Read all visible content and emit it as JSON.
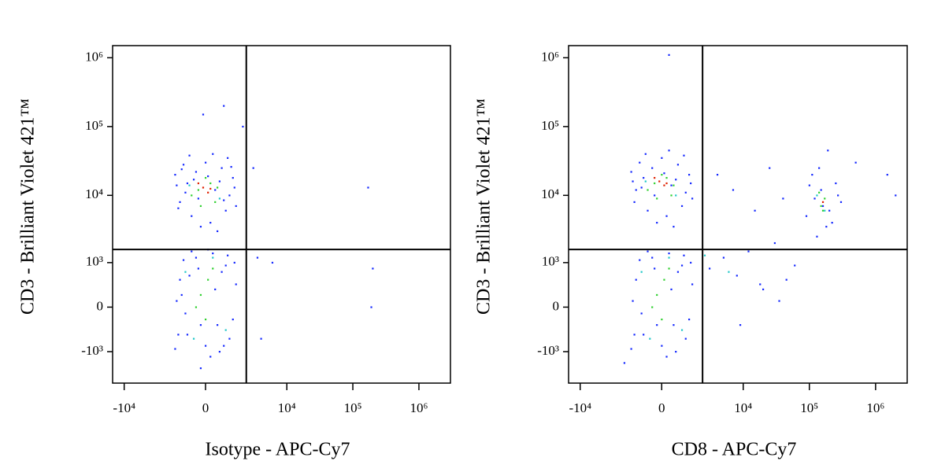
{
  "chart_data": [
    {
      "type": "scatter",
      "xlabel": "Isotype - APC-Cy7",
      "ylabel": "CD3 - Brilliant Violet 421™",
      "xscale": "biexponential",
      "yscale": "biexponential",
      "xlim": [
        -15000,
        3000000
      ],
      "ylim": [
        -3000,
        1500000
      ],
      "xticks": [
        {
          "value": -10000,
          "label": "-10⁴"
        },
        0,
        {
          "value": 10000,
          "label": "10⁴"
        },
        {
          "value": 100000,
          "label": "10⁵"
        },
        {
          "value": 1000000,
          "label": "10⁶"
        }
      ],
      "yticks": [
        {
          "value": -1000,
          "label": "-10³"
        },
        0,
        {
          "value": 1000,
          "label": "10³"
        },
        {
          "value": 10000,
          "label": "10⁴"
        },
        {
          "value": 100000,
          "label": "10⁵"
        },
        {
          "value": 1000000,
          "label": "10⁶"
        }
      ],
      "quadrant_x": 2300,
      "quadrant_y": 1600,
      "series": [
        {
          "color": "#1428ff",
          "x": [
            -1200,
            -800,
            -400,
            0,
            400,
            900,
            1300,
            -1400,
            -600,
            200,
            700,
            1100,
            -1000,
            300,
            -200,
            1500,
            -1500,
            600,
            -300,
            1000,
            -900,
            1400,
            -1300,
            500,
            -700,
            100,
            800,
            -1100,
            1200,
            -500,
            -100,
            800,
            3000,
            170000,
            2000,
            -1200,
            -800,
            -400,
            0,
            400,
            900,
            1300,
            -1400,
            -600,
            200,
            700,
            1100,
            -1000,
            300,
            -200,
            1500,
            -1500,
            600,
            -300,
            1000,
            -900,
            1400,
            -1300,
            500,
            -700,
            100,
            800,
            -1100,
            3500,
            4000,
            6000,
            200000,
            190000,
            -200
          ],
          "y": [
            8000,
            15000,
            22000,
            30000,
            12000,
            6000,
            18000,
            14000,
            5000,
            4000,
            25000,
            10000,
            28000,
            40000,
            3500,
            7000,
            20000,
            16000,
            9000,
            35000,
            11000,
            13000,
            6500,
            3000,
            38000,
            19000,
            8500,
            24000,
            26000,
            17000,
            150000,
            200000,
            25000,
            13000,
            100000,
            500,
            -500,
            1200,
            -800,
            300,
            900,
            -200,
            100,
            1500,
            -1200,
            700,
            -600,
            1100,
            1400,
            -300,
            400,
            -900,
            -1000,
            800,
            1300,
            -100,
            1000,
            -500,
            -300,
            600,
            1600,
            -800,
            200,
            1200,
            -600,
            1000,
            800,
            0,
            -1800
          ]
        },
        {
          "color": "#20c8c8",
          "x": [
            -700,
            600,
            -900,
            900,
            -500,
            300
          ],
          "y": [
            14000,
            9000,
            700,
            -400,
            -600,
            1200
          ]
        },
        {
          "color": "#30d030",
          "x": [
            -300,
            200,
            -600,
            400,
            0,
            -200,
            500,
            -200,
            100,
            -400,
            300,
            0
          ],
          "y": [
            12000,
            15000,
            10000,
            8000,
            18000,
            7000,
            13000,
            200,
            500,
            0,
            800,
            -200
          ]
        },
        {
          "color": "#e02000",
          "x": [
            -100,
            100,
            -300,
            200
          ],
          "y": [
            13000,
            11000,
            15000,
            12500
          ]
        }
      ]
    },
    {
      "type": "scatter",
      "xlabel": "CD8 - APC-Cy7",
      "ylabel": "CD3 - Brilliant Violet 421™",
      "xscale": "biexponential",
      "yscale": "biexponential",
      "xlim": [
        -15000,
        3000000
      ],
      "ylim": [
        -3000,
        1500000
      ],
      "xticks": [
        {
          "value": -10000,
          "label": "-10⁴"
        },
        0,
        {
          "value": 10000,
          "label": "10⁴"
        },
        {
          "value": 100000,
          "label": "10⁵"
        },
        {
          "value": 1000000,
          "label": "10⁶"
        }
      ],
      "yticks": [
        {
          "value": -1000,
          "label": "-10³"
        },
        0,
        {
          "value": 1000,
          "label": "10³"
        },
        {
          "value": 10000,
          "label": "10⁴"
        },
        {
          "value": 100000,
          "label": "10⁵"
        },
        {
          "value": 1000000,
          "label": "10⁶"
        }
      ],
      "quadrant_x": 2300,
      "quadrant_y": 1600,
      "series": [
        {
          "color": "#1428ff",
          "x": [
            -1200,
            -800,
            -400,
            0,
            400,
            900,
            1300,
            -1400,
            -600,
            200,
            700,
            1100,
            -1000,
            300,
            -200,
            1500,
            -1500,
            600,
            -300,
            1000,
            -900,
            1400,
            -1300,
            500,
            -700,
            100,
            -1200,
            -800,
            -400,
            0,
            400,
            900,
            1300,
            -1400,
            -600,
            200,
            700,
            1100,
            -1000,
            300,
            -200,
            1500,
            -1500,
            600,
            -300,
            1000,
            -900,
            1400,
            -1300,
            500,
            90000,
            120000,
            150000,
            200000,
            250000,
            300000,
            110000,
            180000,
            140000,
            220000,
            160000,
            100000,
            270000,
            130000,
            190000,
            3000,
            5000,
            8000,
            12000,
            20000,
            30000,
            45000,
            60000,
            4000,
            7000,
            15000,
            25000,
            40000,
            9000,
            18000,
            35000,
            500000,
            1500000,
            2000000,
            300,
            -2000
          ],
          "y": [
            12000,
            18000,
            25000,
            35000,
            14000,
            7000,
            20000,
            16000,
            6000,
            5000,
            28000,
            11000,
            30000,
            45000,
            4000,
            9000,
            22000,
            17000,
            10000,
            38000,
            13000,
            15000,
            8000,
            3500,
            40000,
            21000,
            500,
            -500,
            1200,
            -800,
            300,
            900,
            -200,
            100,
            1500,
            -1200,
            700,
            -600,
            1100,
            1400,
            -300,
            400,
            -900,
            -1000,
            800,
            1300,
            -100,
            1000,
            -500,
            -300,
            5000,
            9000,
            12000,
            6000,
            15000,
            8000,
            20000,
            3500,
            25000,
            4000,
            7000,
            14000,
            10000,
            2500,
            45000,
            800,
            1200,
            600,
            1500,
            300,
            2000,
            500,
            900,
            20000,
            12000,
            6000,
            25000,
            9000,
            -300,
            400,
            100,
            30000,
            20000,
            10000,
            1100000,
            -1500
          ]
        },
        {
          "color": "#20c8c8",
          "x": [
            -700,
            600,
            -900,
            900,
            -500,
            300,
            130000,
            170000,
            2500,
            6000
          ],
          "y": [
            16000,
            10000,
            700,
            -400,
            -600,
            1200,
            10000,
            6000,
            1300,
            700
          ]
        },
        {
          "color": "#30d030",
          "x": [
            -300,
            200,
            -600,
            400,
            0,
            -200,
            500,
            -200,
            100,
            -400,
            300,
            0,
            150000,
            170000,
            140000,
            160000
          ],
          "y": [
            15000,
            18000,
            12000,
            10000,
            20000,
            9000,
            14000,
            200,
            500,
            0,
            800,
            -200,
            7000,
            9000,
            11000,
            6000
          ]
        },
        {
          "color": "#e02000",
          "x": [
            -100,
            100,
            -300,
            200,
            160000
          ],
          "y": [
            16000,
            14000,
            18000,
            15000,
            8000
          ]
        }
      ]
    }
  ]
}
